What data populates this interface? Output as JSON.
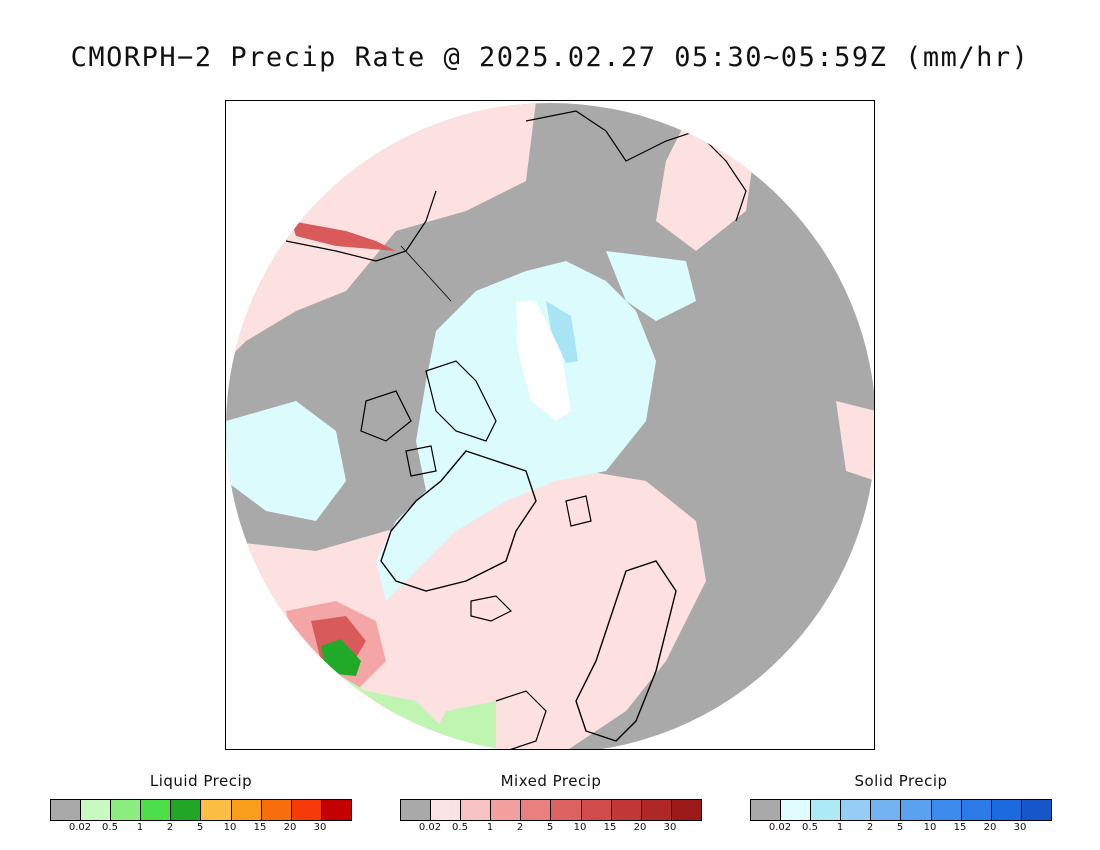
{
  "title": "CMORPH−2 Precip Rate @ 2025.02.27 05:30~05:59Z (mm/hr)",
  "map": {
    "projection": "north polar stereographic",
    "colors": {
      "no_precip": "#a9a9a9",
      "mixed_light": "#fde0e0",
      "mixed_medium": "#f4a6a6",
      "mixed_heavy": "#d95a5a",
      "solid_light": "#dcfbfd",
      "solid_medium": "#a8e4f3",
      "liquid_light": "#bff5b0",
      "liquid_heavy": "#21a928",
      "coastline": "#000000"
    }
  },
  "legends": [
    {
      "name": "liquid",
      "title": "Liquid Precip",
      "colors": [
        "#a9a9a9",
        "#c6fac0",
        "#8ced80",
        "#4ee04a",
        "#22a626",
        "#fbbd42",
        "#f99d1c",
        "#f86e0d",
        "#f63a09",
        "#c40000"
      ],
      "ticks": [
        "0.02",
        "0.5",
        "1",
        "2",
        "5",
        "10",
        "15",
        "20",
        "30"
      ]
    },
    {
      "name": "mixed",
      "title": "Mixed Precip",
      "colors": [
        "#a9a9a9",
        "#fde3e3",
        "#f9c2c2",
        "#f2a0a0",
        "#e98080",
        "#dd6363",
        "#d04b4b",
        "#c03838",
        "#b02727",
        "#9c1a1a"
      ],
      "ticks": [
        "0.02",
        "0.5",
        "1",
        "2",
        "5",
        "10",
        "15",
        "20",
        "30"
      ]
    },
    {
      "name": "solid",
      "title": "Solid Precip",
      "colors": [
        "#a9a9a9",
        "#e1fcfd",
        "#aeebf6",
        "#94cdf5",
        "#74b3f2",
        "#5aa1f0",
        "#3d8ced",
        "#2b7ae7",
        "#1d69de",
        "#1557c8"
      ],
      "ticks": [
        "0.02",
        "0.5",
        "1",
        "2",
        "5",
        "10",
        "15",
        "20",
        "30"
      ]
    }
  ]
}
